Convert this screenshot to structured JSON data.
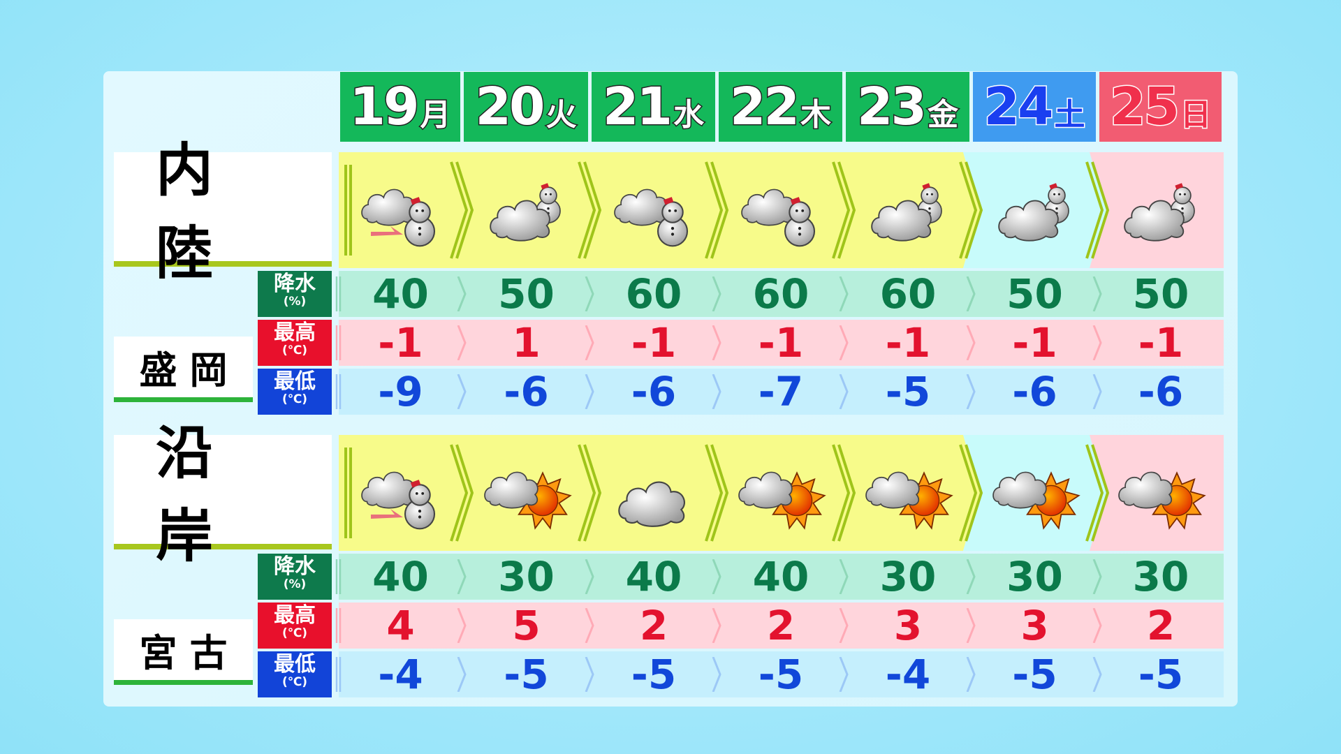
{
  "colors": {
    "header_weekday": "#14b85a",
    "header_sat": "#3f9bf0",
    "header_sun": "#f25c72",
    "sat_text": "#1a4ff0",
    "sun_text": "#ee1c3c",
    "precip_label": "#0e7a4c",
    "high_label": "#e8102c",
    "low_label": "#1244d8",
    "precip_bg": "#b7efdc",
    "high_bg": "#ffd5dc",
    "low_bg": "#c5effd",
    "precip_text": "#0b7a4a",
    "high_text": "#e3122e",
    "low_text": "#1147d9",
    "icon_bg_weekday": "#f7fb8a",
    "icon_bg_sat": "#c8fbfb",
    "icon_bg_sun": "#ffd4dc"
  },
  "days": [
    {
      "date": "19",
      "weekday": "月",
      "type": "weekday"
    },
    {
      "date": "20",
      "weekday": "火",
      "type": "weekday"
    },
    {
      "date": "21",
      "weekday": "水",
      "type": "weekday"
    },
    {
      "date": "22",
      "weekday": "木",
      "type": "weekday"
    },
    {
      "date": "23",
      "weekday": "金",
      "type": "weekday"
    },
    {
      "date": "24",
      "weekday": "土",
      "type": "sat"
    },
    {
      "date": "25",
      "weekday": "日",
      "type": "sun"
    }
  ],
  "labels": {
    "precip": "降水",
    "precip_unit": "(%)",
    "high": "最高",
    "high_unit": "(℃)",
    "low": "最低",
    "low_unit": "(℃)"
  },
  "regions": [
    {
      "name": "内陸",
      "city": "盛岡",
      "icons": [
        "cloudy-later-snow",
        "cloudy-occasional-snow",
        "cloudy-sometimes-snow",
        "cloudy-sometimes-snow",
        "cloudy-occasional-snow",
        "cloudy-occasional-snow",
        "cloudy-occasional-snow"
      ],
      "precip": [
        "40",
        "50",
        "60",
        "60",
        "60",
        "50",
        "50"
      ],
      "high": [
        "-1",
        "1",
        "-1",
        "-1",
        "-1",
        "-1",
        "-1"
      ],
      "low": [
        "-9",
        "-6",
        "-6",
        "-7",
        "-5",
        "-6",
        "-6"
      ]
    },
    {
      "name": "沿岸",
      "city": "宮古",
      "icons": [
        "cloudy-later-snow",
        "cloudy-sometimes-sunny",
        "cloudy",
        "cloudy-sometimes-sunny",
        "cloudy-sometimes-sunny",
        "cloudy-sometimes-sunny",
        "cloudy-sometimes-sunny"
      ],
      "precip": [
        "40",
        "30",
        "40",
        "40",
        "30",
        "30",
        "30"
      ],
      "high": [
        "4",
        "5",
        "2",
        "2",
        "3",
        "3",
        "2"
      ],
      "low": [
        "-4",
        "-5",
        "-5",
        "-5",
        "-4",
        "-5",
        "-5"
      ]
    }
  ]
}
